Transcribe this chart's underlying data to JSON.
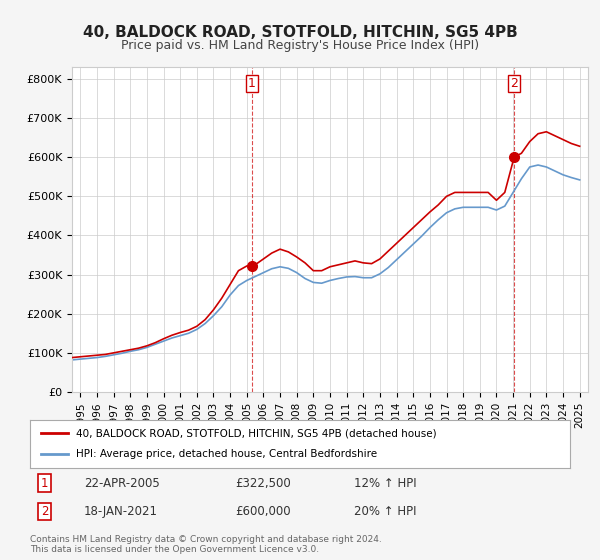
{
  "title": "40, BALDOCK ROAD, STOTFOLD, HITCHIN, SG5 4PB",
  "subtitle": "Price paid vs. HM Land Registry's House Price Index (HPI)",
  "title_fontsize": 11,
  "subtitle_fontsize": 9,
  "ylabel_ticks": [
    "£0",
    "£100K",
    "£200K",
    "£300K",
    "£400K",
    "£500K",
    "£600K",
    "£700K",
    "£800K"
  ],
  "ytick_vals": [
    0,
    100000,
    200000,
    300000,
    400000,
    500000,
    600000,
    700000,
    800000
  ],
  "ylim": [
    0,
    830000
  ],
  "xlim_start": 1994.5,
  "xlim_end": 2025.5,
  "xtick_years": [
    1995,
    1996,
    1997,
    1998,
    1999,
    2000,
    2001,
    2002,
    2003,
    2004,
    2005,
    2006,
    2007,
    2008,
    2009,
    2010,
    2011,
    2012,
    2013,
    2014,
    2015,
    2016,
    2017,
    2018,
    2019,
    2020,
    2021,
    2022,
    2023,
    2024,
    2025
  ],
  "red_color": "#cc0000",
  "blue_color": "#6699cc",
  "background_color": "#f5f5f5",
  "plot_bg_color": "#ffffff",
  "grid_color": "#cccccc",
  "point1_year": 2005.31,
  "point1_val": 322500,
  "point1_label": "1",
  "point2_year": 2021.05,
  "point2_val": 600000,
  "point2_label": "2",
  "legend_line1": "40, BALDOCK ROAD, STOTFOLD, HITCHIN, SG5 4PB (detached house)",
  "legend_line2": "HPI: Average price, detached house, Central Bedfordshire",
  "table_row1": [
    "1",
    "22-APR-2005",
    "£322,500",
    "12% ↑ HPI"
  ],
  "table_row2": [
    "2",
    "18-JAN-2021",
    "£600,000",
    "20% ↑ HPI"
  ],
  "footnote": "Contains HM Land Registry data © Crown copyright and database right 2024.\nThis data is licensed under the Open Government Licence v3.0.",
  "red_x": [
    1994.5,
    1995.0,
    1995.5,
    1996.0,
    1996.5,
    1997.0,
    1997.5,
    1998.0,
    1998.5,
    1999.0,
    1999.5,
    2000.0,
    2000.5,
    2001.0,
    2001.5,
    2002.0,
    2002.5,
    2003.0,
    2003.5,
    2004.0,
    2004.5,
    2005.0,
    2005.31,
    2005.5,
    2006.0,
    2006.5,
    2007.0,
    2007.5,
    2008.0,
    2008.5,
    2009.0,
    2009.5,
    2010.0,
    2010.5,
    2011.0,
    2011.5,
    2012.0,
    2012.5,
    2013.0,
    2013.5,
    2014.0,
    2014.5,
    2015.0,
    2015.5,
    2016.0,
    2016.5,
    2017.0,
    2017.5,
    2018.0,
    2018.5,
    2019.0,
    2019.5,
    2020.0,
    2020.5,
    2021.0,
    2021.05,
    2021.5,
    2022.0,
    2022.5,
    2023.0,
    2023.5,
    2024.0,
    2024.5,
    2025.0
  ],
  "red_y": [
    88000,
    90000,
    92000,
    94000,
    96000,
    100000,
    104000,
    108000,
    112000,
    118000,
    126000,
    136000,
    145000,
    152000,
    158000,
    168000,
    185000,
    210000,
    240000,
    275000,
    310000,
    322000,
    322500,
    325000,
    340000,
    355000,
    365000,
    358000,
    345000,
    330000,
    310000,
    310000,
    320000,
    325000,
    330000,
    335000,
    330000,
    328000,
    340000,
    360000,
    380000,
    400000,
    420000,
    440000,
    460000,
    478000,
    500000,
    510000,
    510000,
    510000,
    510000,
    510000,
    490000,
    510000,
    590000,
    600000,
    610000,
    640000,
    660000,
    665000,
    655000,
    645000,
    635000,
    628000
  ],
  "blue_x": [
    1994.5,
    1995.0,
    1995.5,
    1996.0,
    1996.5,
    1997.0,
    1997.5,
    1998.0,
    1998.5,
    1999.0,
    1999.5,
    2000.0,
    2000.5,
    2001.0,
    2001.5,
    2002.0,
    2002.5,
    2003.0,
    2003.5,
    2004.0,
    2004.5,
    2005.0,
    2005.5,
    2006.0,
    2006.5,
    2007.0,
    2007.5,
    2008.0,
    2008.5,
    2009.0,
    2009.5,
    2010.0,
    2010.5,
    2011.0,
    2011.5,
    2012.0,
    2012.5,
    2013.0,
    2013.5,
    2014.0,
    2014.5,
    2015.0,
    2015.5,
    2016.0,
    2016.5,
    2017.0,
    2017.5,
    2018.0,
    2018.5,
    2019.0,
    2019.5,
    2020.0,
    2020.5,
    2021.0,
    2021.5,
    2022.0,
    2022.5,
    2023.0,
    2023.5,
    2024.0,
    2024.5,
    2025.0
  ],
  "blue_y": [
    82000,
    84000,
    86000,
    88000,
    91000,
    95000,
    99000,
    104000,
    108000,
    114000,
    122000,
    130000,
    138000,
    144000,
    150000,
    160000,
    175000,
    195000,
    218000,
    248000,
    272000,
    285000,
    295000,
    305000,
    315000,
    320000,
    316000,
    305000,
    290000,
    280000,
    278000,
    285000,
    290000,
    294000,
    295000,
    292000,
    292000,
    302000,
    318000,
    338000,
    358000,
    378000,
    398000,
    420000,
    440000,
    458000,
    468000,
    472000,
    472000,
    472000,
    472000,
    465000,
    475000,
    510000,
    545000,
    575000,
    580000,
    575000,
    565000,
    555000,
    548000,
    542000
  ]
}
